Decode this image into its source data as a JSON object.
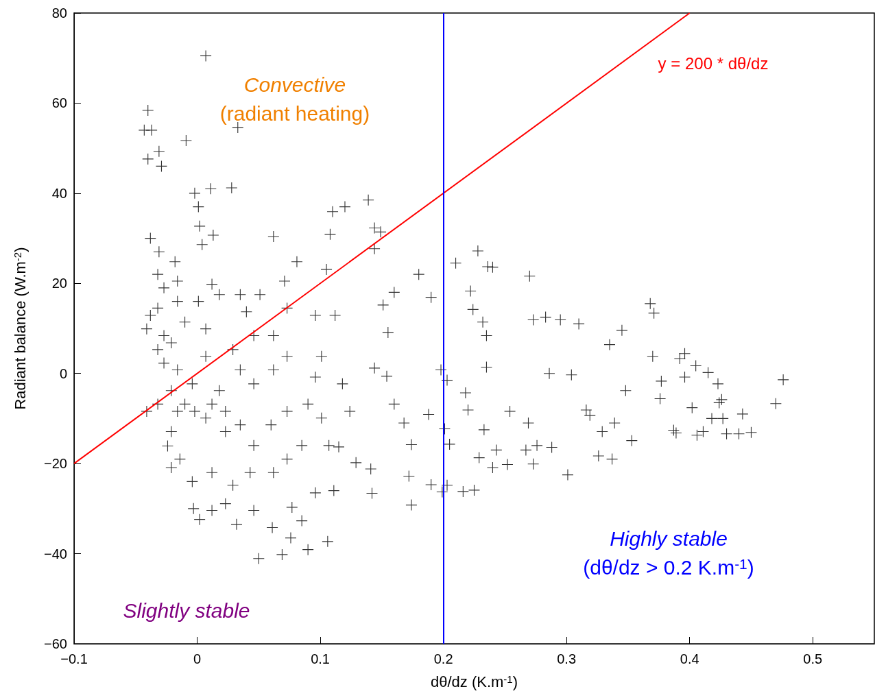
{
  "chart_data": {
    "type": "scatter",
    "xlabel": "dθ/dz (K.m$^{-1}$)",
    "ylabel": "Radiant balance (W.m$^{-2}$)",
    "marker": "cross",
    "grid": false,
    "xlim": [
      -0.1,
      0.55
    ],
    "xticks": [
      {
        "value": -0.1,
        "label": "−0.1"
      },
      0,
      0.1,
      0.2,
      0.3,
      0.4,
      0.5
    ],
    "ylim": [
      -60,
      80
    ],
    "yticks": [
      {
        "value": -60,
        "label": "−60"
      },
      {
        "value": -40,
        "label": "−40"
      },
      {
        "value": -20,
        "label": "−20"
      },
      0,
      20,
      40,
      60,
      80
    ],
    "ref_lines": [
      {
        "axis": "x",
        "value": 0.2,
        "color": "#0000ff"
      }
    ],
    "annotations": [
      "Convective\n(radiant heating)",
      "Highly stable\n(dθ/dz > 0.2 K.m$^{-1}$)",
      "Slightly stable",
      "y = 200 * dθ/dz"
    ],
    "series": [
      {
        "color": "#000000",
        "x": [
          0.007,
          -0.04,
          -0.043,
          -0.037,
          -0.04,
          -0.031,
          -0.029,
          -0.009,
          0.033,
          -0.002,
          0.011,
          0.028,
          0.001,
          0.002,
          -0.038,
          0.062,
          0.013,
          0.004,
          -0.031,
          -0.018,
          0.081,
          0.11,
          0.12,
          0.139,
          0.108,
          0.144,
          0.149,
          0.144,
          0.105,
          0.071,
          0.18,
          0.19,
          0.21,
          0.228,
          0.236,
          0.24,
          0.27,
          0.222,
          0.224,
          0.232,
          0.235,
          0.235,
          0.273,
          0.283,
          0.295,
          0.31,
          0.345,
          0.335,
          0.368,
          0.371,
          0.37,
          0.392,
          0.396,
          0.405,
          0.415,
          0.376,
          0.377,
          0.396,
          0.476,
          0.47,
          0.423,
          0.402,
          0.424,
          0.426,
          0.418,
          0.411,
          0.406,
          0.387,
          0.389,
          0.43,
          0.44,
          0.443,
          0.45,
          0.427,
          0.348,
          0.337,
          0.326,
          0.301,
          0.319,
          0.339,
          0.329,
          0.316,
          0.353,
          0.286,
          0.304,
          0.288,
          0.269,
          0.276,
          0.273,
          0.267,
          0.254,
          0.243,
          0.24,
          0.252,
          0.203,
          0.198,
          0.218,
          0.22,
          0.201,
          0.233,
          0.229,
          0.225,
          0.216,
          0.203,
          0.199,
          0.19,
          0.205,
          0.188,
          0.174,
          0.172,
          0.174,
          0.168,
          0.16,
          0.154,
          0.144,
          0.155,
          0.151,
          0.16,
          0.141,
          0.142,
          0.129,
          0.115,
          0.107,
          0.106,
          0.096,
          0.111,
          0.077,
          0.085,
          0.09,
          0.069,
          0.05,
          0.076,
          0.061,
          0.046,
          0.032,
          0.023,
          0.012,
          -0.003,
          0.002,
          -0.021,
          -0.024,
          -0.014,
          -0.004,
          0.012,
          0.029,
          0.043,
          0.062,
          0.073,
          0.085,
          0.046,
          0.023,
          0.007,
          -0.002,
          0.012,
          0.023,
          0.035,
          0.06,
          0.073,
          0.09,
          0.101,
          0.124,
          0.118,
          0.096,
          0.101,
          0.073,
          0.062,
          0.046,
          0.035,
          0.029,
          0.046,
          0.062,
          0.096,
          0.112,
          0.073,
          0.051,
          0.035,
          0.018,
          0.001,
          -0.016,
          -0.032,
          -0.041,
          -0.032,
          -0.027,
          -0.016,
          0.012,
          -0.021,
          -0.01,
          0.007,
          -0.032,
          -0.027,
          -0.016,
          -0.004,
          -0.021,
          -0.032,
          -0.041,
          -0.01,
          0.018,
          -0.027,
          -0.038,
          0.04,
          0.007,
          -0.016,
          -0.021
        ],
        "values": [
          70.5,
          58.4,
          54,
          54,
          47.6,
          49.3,
          46,
          51.7,
          54.6,
          40,
          41,
          41.2,
          37,
          32.7,
          30,
          30.4,
          30.7,
          28.6,
          27,
          24.8,
          24.8,
          35.9,
          37,
          38.5,
          30.9,
          32.3,
          31.4,
          27.7,
          23.1,
          20.5,
          22,
          16.9,
          24.5,
          27.2,
          23.7,
          23.6,
          21.6,
          18.3,
          14.2,
          11.4,
          8.4,
          1.4,
          11.9,
          12.5,
          11.9,
          11,
          9.6,
          6.4,
          15.5,
          13.4,
          3.8,
          3.3,
          4.4,
          1.7,
          0.2,
          -5.6,
          -1.7,
          -0.8,
          -1.4,
          -6.7,
          -2.3,
          -7.6,
          -6.5,
          -5.8,
          -10,
          -12.9,
          -13.7,
          -12.6,
          -13.2,
          -13.4,
          -13.4,
          -9,
          -13.1,
          -10,
          -3.8,
          -19,
          -18.3,
          -22.5,
          -9.3,
          -11,
          -12.9,
          -8.1,
          -14.9,
          0,
          -0.3,
          -16.4,
          -11,
          -16,
          -20.1,
          -17,
          -8.4,
          -17,
          -20.9,
          -20.2,
          -1.5,
          0.8,
          -4.3,
          -8.1,
          -12.3,
          -12.5,
          -18.7,
          -25.9,
          -26.2,
          -24.8,
          -26.3,
          -24.7,
          -15.7,
          -9.1,
          -29.2,
          -22.8,
          -15.8,
          -11,
          -6.8,
          -0.6,
          1.2,
          9.1,
          15.2,
          18,
          -21.2,
          -26.6,
          -19.8,
          -16.3,
          -16,
          -37.3,
          -26.5,
          -26,
          -29.7,
          -32.7,
          -39.1,
          -40.2,
          -41.1,
          -36.5,
          -34.2,
          -30.4,
          -33.5,
          -28.9,
          -30.4,
          -30,
          -32.4,
          -20.9,
          -16.1,
          -19,
          -24,
          -22,
          -24.8,
          -22,
          -22,
          -19,
          -16,
          -16,
          -12.9,
          -9.9,
          -8.4,
          -6.8,
          -8.4,
          -11.4,
          -11.4,
          -8.4,
          -6.8,
          -9.9,
          -8.4,
          -2.3,
          -0.8,
          3.8,
          3.8,
          0.8,
          -2.3,
          0.8,
          5.3,
          8.4,
          8.4,
          12.9,
          12.9,
          14.5,
          17.5,
          17.5,
          17.5,
          16,
          16,
          14.5,
          9.9,
          22,
          19,
          20.5,
          19.8,
          6.8,
          11.4,
          9.9,
          5.3,
          2.3,
          0.8,
          -2.3,
          -3.8,
          -6.8,
          -8.4,
          -6.8,
          -3.8,
          8.4,
          12.9,
          13.7,
          3.8,
          -8.4,
          -12.9
        ]
      },
      {
        "type": "line",
        "color": "#ff0000",
        "marker": "none",
        "x": [
          -0.1,
          0.4
        ],
        "values": [
          -20,
          80
        ]
      }
    ]
  }
}
